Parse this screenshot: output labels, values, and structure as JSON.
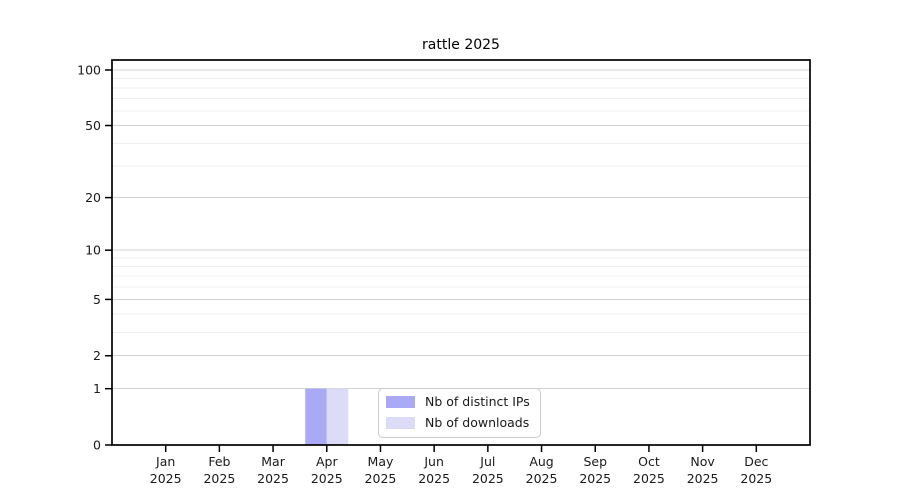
{
  "chart_data": {
    "type": "bar",
    "title": "rattle 2025",
    "categories": [
      "Jan",
      "Feb",
      "Mar",
      "Apr",
      "May",
      "Jun",
      "Jul",
      "Aug",
      "Sep",
      "Oct",
      "Nov",
      "Dec"
    ],
    "x_tick_year": "2025",
    "series": [
      {
        "name": "Nb of distinct IPs",
        "color": "#a9a9f5",
        "values": [
          0,
          0,
          0,
          1,
          0,
          0,
          0,
          0,
          0,
          0,
          0,
          0
        ]
      },
      {
        "name": "Nb of downloads",
        "color": "#dcdcf8",
        "values": [
          0,
          0,
          0,
          1,
          0,
          0,
          0,
          0,
          0,
          0,
          0,
          0
        ]
      }
    ],
    "y_ticks": [
      0,
      1,
      2,
      5,
      10,
      20,
      50,
      100
    ],
    "y_minor_gridlines": [
      3,
      4,
      6,
      7,
      8,
      9,
      30,
      40,
      60,
      70,
      80,
      90
    ],
    "y_scale": "log1p",
    "ylim": [
      0,
      113
    ],
    "grid": true,
    "legend_position": "inside-bottom-center",
    "colors": {
      "axis": "#000000",
      "grid_major": "#d3d3d3",
      "grid_minor": "#efefef",
      "text": "#1a1a1a",
      "background": "#ffffff"
    }
  }
}
